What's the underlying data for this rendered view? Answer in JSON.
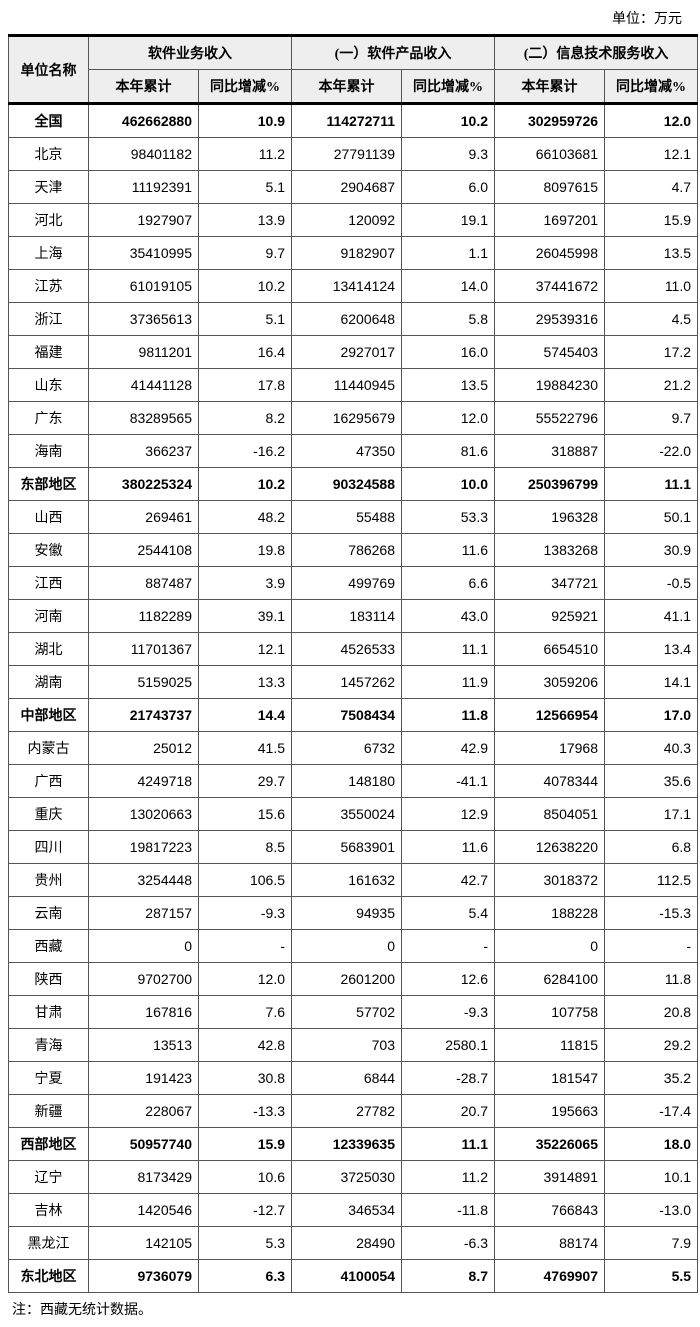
{
  "unit_label": "单位：万元",
  "header": {
    "name": "单位名称",
    "groups": [
      {
        "title": "软件业务收入",
        "sub": [
          "本年累计",
          "同比增减%"
        ]
      },
      {
        "title": "(一）软件产品收入",
        "sub": [
          "本年累计",
          "同比增减%"
        ]
      },
      {
        "title": "(二）信息技术服务收入",
        "sub": [
          "本年累计",
          "同比增减%"
        ]
      }
    ]
  },
  "rows": [
    {
      "bold": true,
      "name": "全国",
      "v1": "462662880",
      "p1": "10.9",
      "v2": "114272711",
      "p2": "10.2",
      "v3": "302959726",
      "p3": "12.0"
    },
    {
      "bold": false,
      "name": "北京",
      "v1": "98401182",
      "p1": "11.2",
      "v2": "27791139",
      "p2": "9.3",
      "v3": "66103681",
      "p3": "12.1"
    },
    {
      "bold": false,
      "name": "天津",
      "v1": "11192391",
      "p1": "5.1",
      "v2": "2904687",
      "p2": "6.0",
      "v3": "8097615",
      "p3": "4.7"
    },
    {
      "bold": false,
      "name": "河北",
      "v1": "1927907",
      "p1": "13.9",
      "v2": "120092",
      "p2": "19.1",
      "v3": "1697201",
      "p3": "15.9"
    },
    {
      "bold": false,
      "name": "上海",
      "v1": "35410995",
      "p1": "9.7",
      "v2": "9182907",
      "p2": "1.1",
      "v3": "26045998",
      "p3": "13.5"
    },
    {
      "bold": false,
      "name": "江苏",
      "v1": "61019105",
      "p1": "10.2",
      "v2": "13414124",
      "p2": "14.0",
      "v3": "37441672",
      "p3": "11.0"
    },
    {
      "bold": false,
      "name": "浙江",
      "v1": "37365613",
      "p1": "5.1",
      "v2": "6200648",
      "p2": "5.8",
      "v3": "29539316",
      "p3": "4.5"
    },
    {
      "bold": false,
      "name": "福建",
      "v1": "9811201",
      "p1": "16.4",
      "v2": "2927017",
      "p2": "16.0",
      "v3": "5745403",
      "p3": "17.2"
    },
    {
      "bold": false,
      "name": "山东",
      "v1": "41441128",
      "p1": "17.8",
      "v2": "11440945",
      "p2": "13.5",
      "v3": "19884230",
      "p3": "21.2"
    },
    {
      "bold": false,
      "name": "广东",
      "v1": "83289565",
      "p1": "8.2",
      "v2": "16295679",
      "p2": "12.0",
      "v3": "55522796",
      "p3": "9.7"
    },
    {
      "bold": false,
      "name": "海南",
      "v1": "366237",
      "p1": "-16.2",
      "v2": "47350",
      "p2": "81.6",
      "v3": "318887",
      "p3": "-22.0"
    },
    {
      "bold": true,
      "name": "东部地区",
      "v1": "380225324",
      "p1": "10.2",
      "v2": "90324588",
      "p2": "10.0",
      "v3": "250396799",
      "p3": "11.1"
    },
    {
      "bold": false,
      "name": "山西",
      "v1": "269461",
      "p1": "48.2",
      "v2": "55488",
      "p2": "53.3",
      "v3": "196328",
      "p3": "50.1"
    },
    {
      "bold": false,
      "name": "安徽",
      "v1": "2544108",
      "p1": "19.8",
      "v2": "786268",
      "p2": "11.6",
      "v3": "1383268",
      "p3": "30.9"
    },
    {
      "bold": false,
      "name": "江西",
      "v1": "887487",
      "p1": "3.9",
      "v2": "499769",
      "p2": "6.6",
      "v3": "347721",
      "p3": "-0.5"
    },
    {
      "bold": false,
      "name": "河南",
      "v1": "1182289",
      "p1": "39.1",
      "v2": "183114",
      "p2": "43.0",
      "v3": "925921",
      "p3": "41.1"
    },
    {
      "bold": false,
      "name": "湖北",
      "v1": "11701367",
      "p1": "12.1",
      "v2": "4526533",
      "p2": "11.1",
      "v3": "6654510",
      "p3": "13.4"
    },
    {
      "bold": false,
      "name": "湖南",
      "v1": "5159025",
      "p1": "13.3",
      "v2": "1457262",
      "p2": "11.9",
      "v3": "3059206",
      "p3": "14.1"
    },
    {
      "bold": true,
      "name": "中部地区",
      "v1": "21743737",
      "p1": "14.4",
      "v2": "7508434",
      "p2": "11.8",
      "v3": "12566954",
      "p3": "17.0"
    },
    {
      "bold": false,
      "name": "内蒙古",
      "v1": "25012",
      "p1": "41.5",
      "v2": "6732",
      "p2": "42.9",
      "v3": "17968",
      "p3": "40.3"
    },
    {
      "bold": false,
      "name": "广西",
      "v1": "4249718",
      "p1": "29.7",
      "v2": "148180",
      "p2": "-41.1",
      "v3": "4078344",
      "p3": "35.6"
    },
    {
      "bold": false,
      "name": "重庆",
      "v1": "13020663",
      "p1": "15.6",
      "v2": "3550024",
      "p2": "12.9",
      "v3": "8504051",
      "p3": "17.1"
    },
    {
      "bold": false,
      "name": "四川",
      "v1": "19817223",
      "p1": "8.5",
      "v2": "5683901",
      "p2": "11.6",
      "v3": "12638220",
      "p3": "6.8"
    },
    {
      "bold": false,
      "name": "贵州",
      "v1": "3254448",
      "p1": "106.5",
      "v2": "161632",
      "p2": "42.7",
      "v3": "3018372",
      "p3": "112.5"
    },
    {
      "bold": false,
      "name": "云南",
      "v1": "287157",
      "p1": "-9.3",
      "v2": "94935",
      "p2": "5.4",
      "v3": "188228",
      "p3": "-15.3"
    },
    {
      "bold": false,
      "name": "西藏",
      "v1": "0",
      "p1": "-",
      "v2": "0",
      "p2": "-",
      "v3": "0",
      "p3": "-"
    },
    {
      "bold": false,
      "name": "陕西",
      "v1": "9702700",
      "p1": "12.0",
      "v2": "2601200",
      "p2": "12.6",
      "v3": "6284100",
      "p3": "11.8"
    },
    {
      "bold": false,
      "name": "甘肃",
      "v1": "167816",
      "p1": "7.6",
      "v2": "57702",
      "p2": "-9.3",
      "v3": "107758",
      "p3": "20.8"
    },
    {
      "bold": false,
      "name": "青海",
      "v1": "13513",
      "p1": "42.8",
      "v2": "703",
      "p2": "2580.1",
      "v3": "11815",
      "p3": "29.2"
    },
    {
      "bold": false,
      "name": "宁夏",
      "v1": "191423",
      "p1": "30.8",
      "v2": "6844",
      "p2": "-28.7",
      "v3": "181547",
      "p3": "35.2"
    },
    {
      "bold": false,
      "name": "新疆",
      "v1": "228067",
      "p1": "-13.3",
      "v2": "27782",
      "p2": "20.7",
      "v3": "195663",
      "p3": "-17.4"
    },
    {
      "bold": true,
      "name": "西部地区",
      "v1": "50957740",
      "p1": "15.9",
      "v2": "12339635",
      "p2": "11.1",
      "v3": "35226065",
      "p3": "18.0"
    },
    {
      "bold": false,
      "name": "辽宁",
      "v1": "8173429",
      "p1": "10.6",
      "v2": "3725030",
      "p2": "11.2",
      "v3": "3914891",
      "p3": "10.1"
    },
    {
      "bold": false,
      "name": "吉林",
      "v1": "1420546",
      "p1": "-12.7",
      "v2": "346534",
      "p2": "-11.8",
      "v3": "766843",
      "p3": "-13.0"
    },
    {
      "bold": false,
      "name": "黑龙江",
      "v1": "142105",
      "p1": "5.3",
      "v2": "28490",
      "p2": "-6.3",
      "v3": "88174",
      "p3": "7.9"
    },
    {
      "bold": true,
      "name": "东北地区",
      "v1": "9736079",
      "p1": "6.3",
      "v2": "4100054",
      "p2": "8.7",
      "v3": "4769907",
      "p3": "5.5"
    }
  ],
  "note": "注：西藏无统计数据。"
}
